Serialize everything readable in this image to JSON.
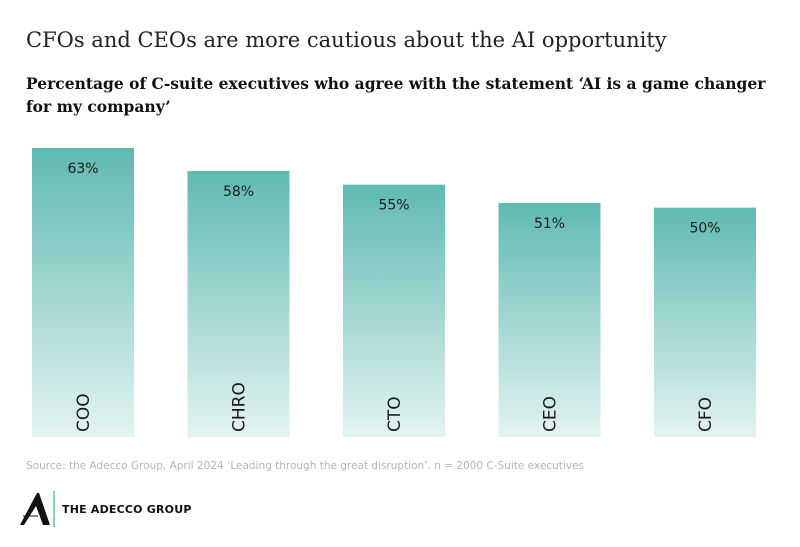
{
  "header": {
    "title": "CFOs and CEOs are more cautious about the AI opportunity",
    "subtitle": "Percentage of C-suite executives who agree with the statement ‘AI is a game changer for my company’"
  },
  "chart_data": {
    "type": "bar",
    "categories": [
      "COO",
      "CHRO",
      "CTO",
      "CEO",
      "CFO"
    ],
    "values": [
      63,
      58,
      55,
      51,
      50
    ],
    "value_labels": [
      "63%",
      "58%",
      "55%",
      "51%",
      "50%"
    ],
    "title": "Percentage of C-suite executives who agree with the statement ‘AI is a game changer for my company’",
    "xlabel": "",
    "ylabel": "",
    "ylim": [
      0,
      63
    ],
    "grid": false,
    "colors": {
      "bar_top": "#5fbab2",
      "bar_bottom": "#e4f3f1",
      "label": "#1a1a1a"
    }
  },
  "footer": {
    "source": "Source: the Adecco Group, April 2024 ‘Leading through the great disruption’. n = 2000 C-Suite executives",
    "brand": "THE ADECCO GROUP",
    "logo_letter": "A"
  }
}
